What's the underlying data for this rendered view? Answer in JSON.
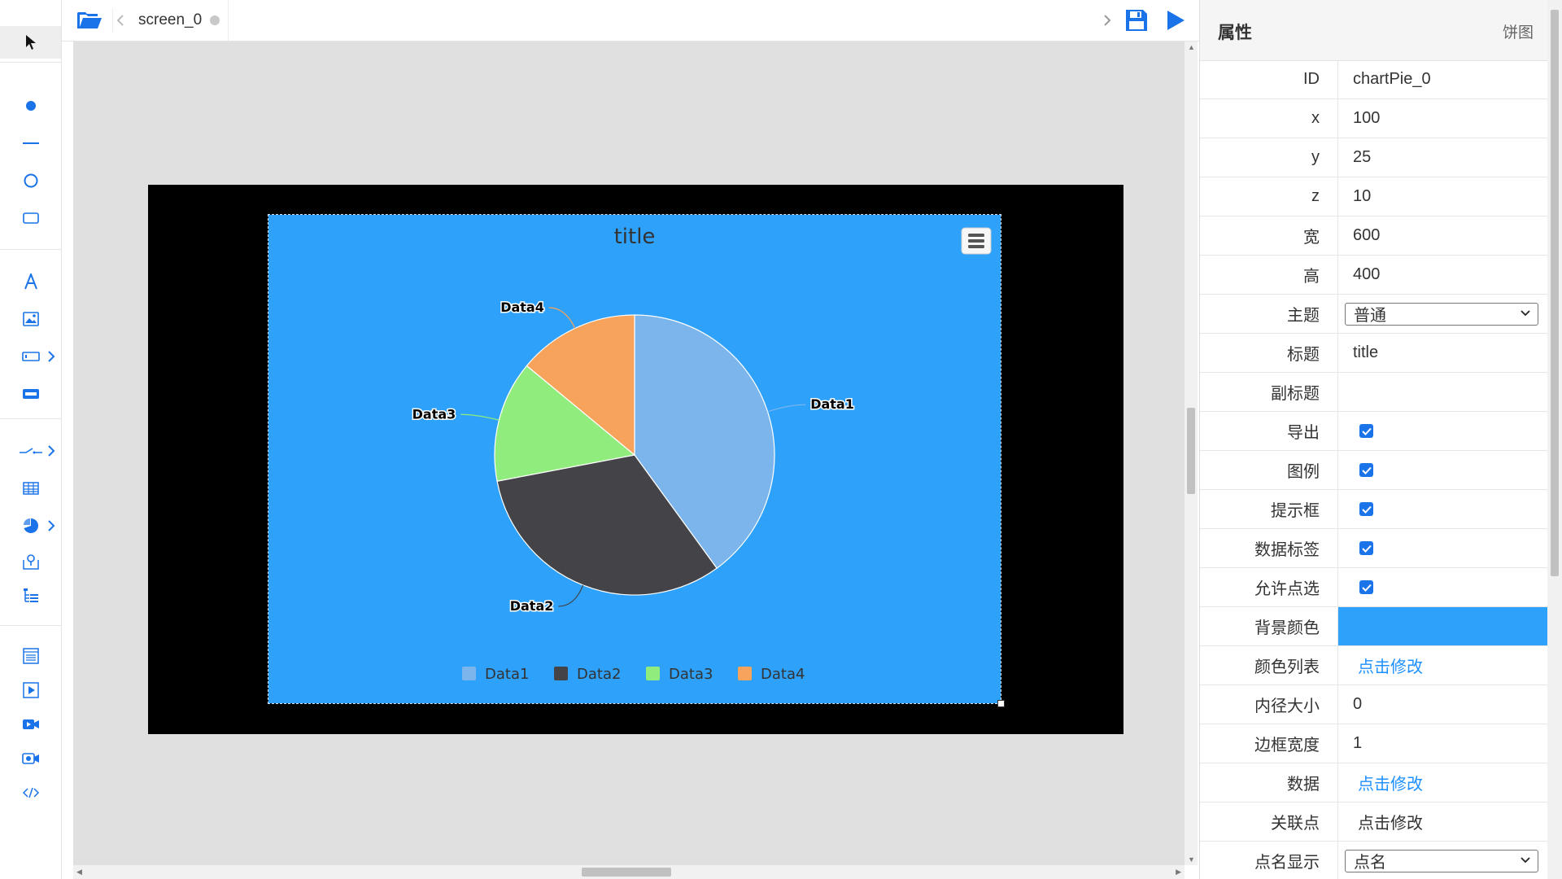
{
  "tabs": {
    "screen_label": "screen_0"
  },
  "chart_data": {
    "type": "pie",
    "title": "title",
    "categories": [
      "Data1",
      "Data2",
      "Data3",
      "Data4"
    ],
    "values": [
      40,
      32,
      14,
      14
    ],
    "colors": [
      "#7cb5ec",
      "#434348",
      "#90ed7d",
      "#f7a35c"
    ],
    "legend": "bottom",
    "background": "#2ea1fb"
  },
  "props": {
    "title": "属性",
    "type": "饼图",
    "rows": {
      "id": {
        "label": "ID",
        "value": "chartPie_0"
      },
      "x": {
        "label": "x",
        "value": "100"
      },
      "y": {
        "label": "y",
        "value": "25"
      },
      "z": {
        "label": "z",
        "value": "10"
      },
      "width": {
        "label": "宽",
        "value": "600"
      },
      "height": {
        "label": "高",
        "value": "400"
      },
      "theme": {
        "label": "主题",
        "value": "普通"
      },
      "chart_title": {
        "label": "标题",
        "value": "title"
      },
      "subtitle": {
        "label": "副标题",
        "value": ""
      },
      "export": {
        "label": "导出"
      },
      "legend": {
        "label": "图例"
      },
      "tooltip": {
        "label": "提示框"
      },
      "datalabel": {
        "label": "数据标签"
      },
      "select": {
        "label": "允许点选"
      },
      "bgcolor": {
        "label": "背景颜色"
      },
      "colorlist": {
        "label": "颜色列表",
        "value": "点击修改"
      },
      "inner": {
        "label": "内径大小",
        "value": "0"
      },
      "border": {
        "label": "边框宽度",
        "value": "1"
      },
      "data": {
        "label": "数据",
        "value": "点击修改"
      },
      "link": {
        "label": "关联点",
        "value": "点击修改"
      },
      "pointname": {
        "label": "点名显示",
        "value": "点名"
      }
    }
  },
  "colors": {
    "accent": "#1a73e8",
    "link": "#1e90ff",
    "chart_bg": "#2ea1fb"
  }
}
